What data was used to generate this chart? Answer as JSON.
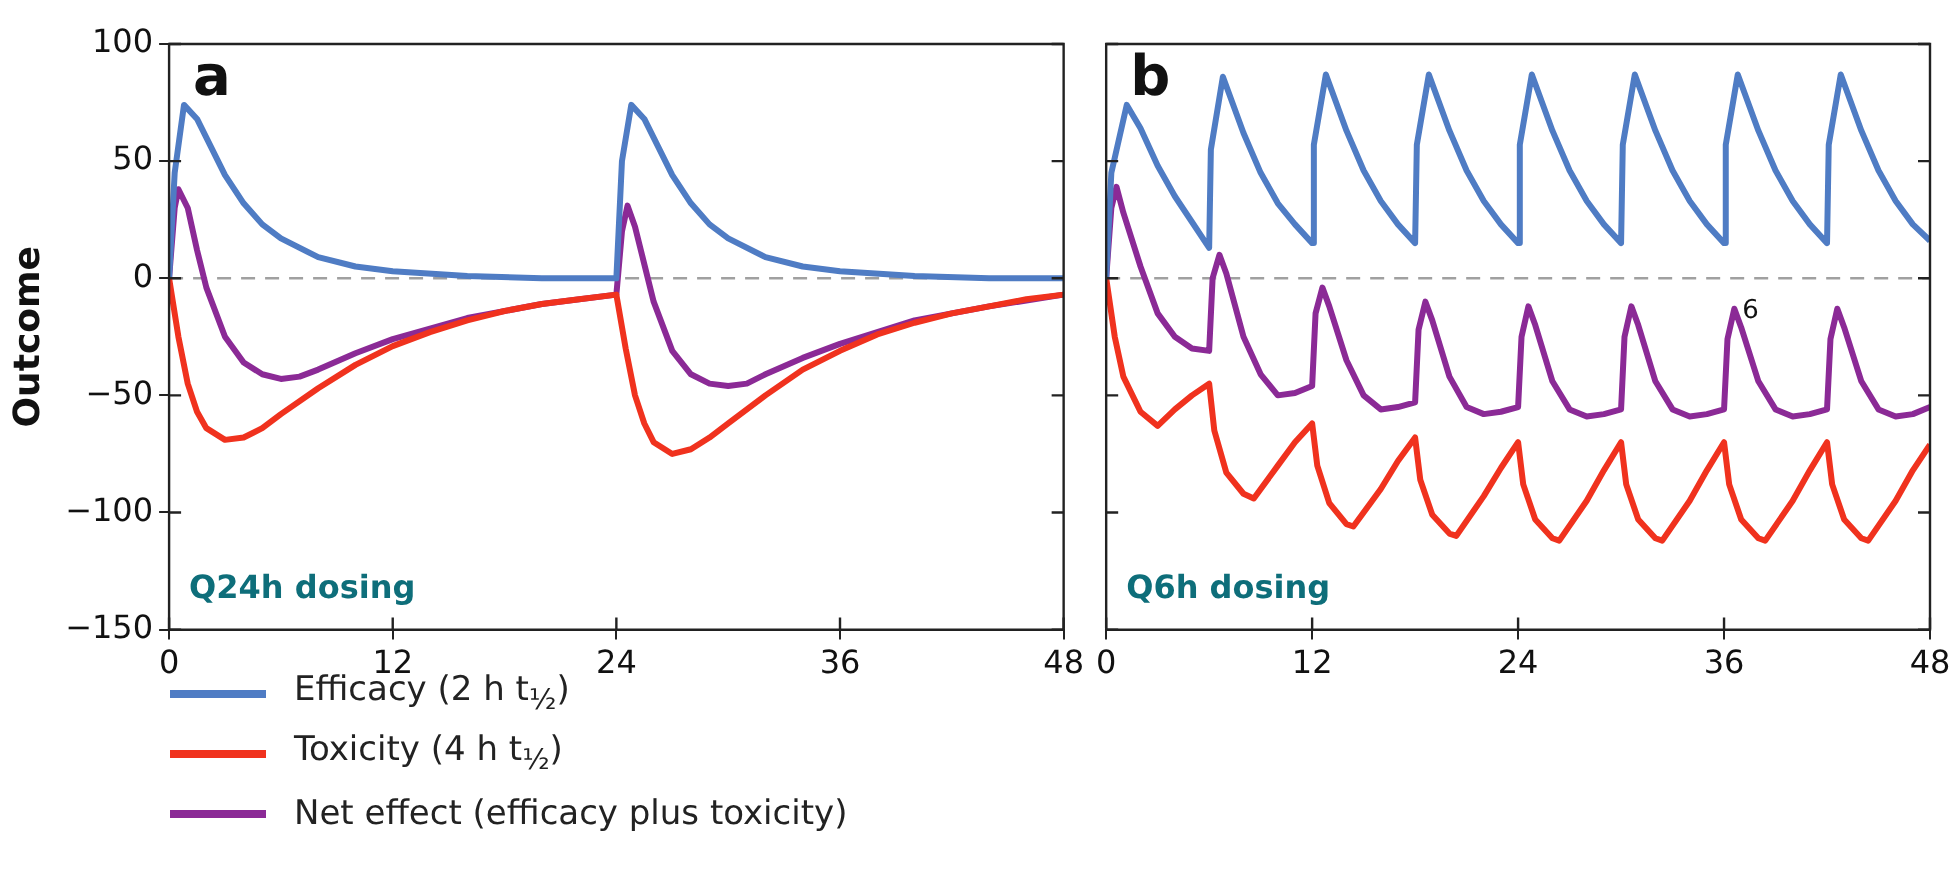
{
  "chart_data": [
    {
      "type": "line",
      "title": "a",
      "ylabel": "Outcome",
      "xlim": [
        0,
        48
      ],
      "xticks": [
        0,
        12,
        24,
        36,
        48
      ],
      "ylim": [
        -150,
        100
      ],
      "yticks": [
        100,
        50,
        0,
        {
          "value": -50,
          "label": "−50"
        },
        {
          "value": -100,
          "label": "−100"
        },
        {
          "value": -150,
          "label": "−150"
        }
      ],
      "grid": false,
      "legend": "bottom",
      "annotations": [
        "Q24h dosing"
      ],
      "ref_lines": [
        {
          "axis": "y",
          "value": 0,
          "color": "#a0a0a0",
          "line_style": "dashed"
        }
      ],
      "series": [
        {
          "name": "Efficacy (2 h t$_{½}$)",
          "color": "#4f7cc4",
          "x": [
            0,
            0.3,
            0.8,
            1.5,
            2,
            3,
            4,
            5,
            6,
            8,
            10,
            12,
            16,
            20,
            24,
            24.3,
            24.8,
            25.5,
            26,
            27,
            28,
            29,
            30,
            32,
            34,
            36,
            40,
            44,
            48
          ],
          "values": [
            0,
            45,
            74,
            68,
            60,
            44,
            32,
            23,
            17,
            9,
            5,
            3,
            1,
            0,
            0,
            50,
            74,
            68,
            60,
            44,
            32,
            23,
            17,
            9,
            5,
            3,
            1,
            0,
            0
          ]
        },
        {
          "name": "Toxicity (4 h t$_{½}$)",
          "color": "#f0321e",
          "x": [
            0,
            0.5,
            1,
            1.5,
            2,
            3,
            4,
            5,
            6,
            8,
            10,
            12,
            14,
            16,
            18,
            20,
            22,
            24,
            24.5,
            25,
            25.5,
            26,
            27,
            28,
            29,
            30,
            32,
            34,
            36,
            38,
            40,
            42,
            44,
            46,
            48
          ],
          "values": [
            0,
            -25,
            -45,
            -57,
            -64,
            -69,
            -68,
            -64,
            -58,
            -47,
            -37,
            -29,
            -23,
            -18,
            -14,
            -11,
            -9,
            -7,
            -30,
            -50,
            -62,
            -70,
            -75,
            -73,
            -68,
            -62,
            -50,
            -39,
            -31,
            -24,
            -19,
            -15,
            -12,
            -9,
            -7
          ]
        },
        {
          "name": "Net effect (efficacy plus toxicity)",
          "color": "#8b2a96",
          "x": [
            0,
            0.3,
            0.5,
            1,
            1.5,
            2,
            3,
            4,
            5,
            6,
            7,
            8,
            10,
            12,
            16,
            20,
            24,
            24.3,
            24.6,
            25,
            25.5,
            26,
            27,
            28,
            29,
            30,
            31,
            32,
            34,
            36,
            40,
            44,
            48
          ],
          "values": [
            0,
            30,
            38,
            30,
            12,
            -4,
            -25,
            -36,
            -41,
            -43,
            -42,
            -39,
            -32,
            -26,
            -17,
            -11,
            -7,
            20,
            31,
            22,
            6,
            -10,
            -31,
            -41,
            -45,
            -46,
            -45,
            -41,
            -34,
            -28,
            -18,
            -12,
            -7
          ]
        }
      ]
    },
    {
      "type": "line",
      "title": "b",
      "xlim": [
        0,
        48
      ],
      "xticks": [
        0,
        12,
        24,
        36,
        48
      ],
      "ylim": [
        -150,
        100
      ],
      "yticks": [
        100,
        50,
        0,
        -50,
        -100,
        -150
      ],
      "tick_labels": "x",
      "grid": false,
      "annotations": [
        "Q6h dosing",
        {
          "text": "6",
          "x": 36.6,
          "y": -14
        }
      ],
      "ref_lines": [
        {
          "axis": "y",
          "value": 0,
          "color": "#a0a0a0",
          "line_style": "dashed"
        }
      ],
      "series": [
        {
          "color": "#4f7cc4",
          "x": [
            0,
            0.3,
            1.2,
            2,
            3,
            4,
            5,
            6,
            6.1,
            6.8,
            8,
            9,
            10,
            11,
            12,
            12.1,
            12.8,
            14,
            15,
            16,
            17,
            18,
            18.1,
            18.8,
            20,
            21,
            22,
            23,
            24,
            24.1,
            24.8,
            26,
            27,
            28,
            29,
            30,
            30.1,
            30.8,
            32,
            33,
            34,
            35,
            36,
            36.1,
            36.8,
            38,
            39,
            40,
            41,
            42,
            42.1,
            42.8,
            44,
            45,
            46,
            47,
            48
          ],
          "values": [
            0,
            45,
            74,
            64,
            48,
            35,
            24,
            13,
            55,
            86,
            62,
            45,
            32,
            23,
            15,
            57,
            87,
            63,
            46,
            33,
            23,
            15,
            57,
            87,
            63,
            46,
            33,
            23,
            15,
            57,
            87,
            63,
            46,
            33,
            23,
            15,
            57,
            87,
            63,
            46,
            33,
            23,
            15,
            57,
            87,
            63,
            46,
            33,
            23,
            15,
            57,
            87,
            63,
            46,
            33,
            23,
            16
          ]
        },
        {
          "color": "#f0321e",
          "x": [
            0,
            0.5,
            1,
            2,
            3,
            4,
            5,
            6,
            6.3,
            7,
            8,
            8.6,
            10,
            11,
            12,
            12.3,
            13,
            14,
            14.4,
            16,
            17,
            18,
            18.3,
            19,
            20,
            20.4,
            22,
            23,
            24,
            24.3,
            25,
            26,
            26.4,
            28,
            29,
            30,
            30.3,
            31,
            32,
            32.4,
            34,
            35,
            36,
            36.3,
            37,
            38,
            38.4,
            40,
            41,
            42,
            42.3,
            43,
            44,
            44.4,
            46,
            47,
            48
          ],
          "values": [
            0,
            -25,
            -42,
            -57,
            -63,
            -56,
            -50,
            -45,
            -65,
            -83,
            -92,
            -94,
            -80,
            -70,
            -62,
            -80,
            -96,
            -105,
            -106,
            -90,
            -78,
            -68,
            -86,
            -101,
            -109,
            -110,
            -93,
            -81,
            -70,
            -88,
            -103,
            -111,
            -112,
            -95,
            -82,
            -70,
            -88,
            -103,
            -111,
            -112,
            -95,
            -82,
            -70,
            -88,
            -103,
            -111,
            -112,
            -95,
            -82,
            -70,
            -88,
            -103,
            -111,
            -112,
            -95,
            -82,
            -71
          ]
        },
        {
          "color": "#8b2a96",
          "x": [
            0,
            0.3,
            0.6,
            1,
            2,
            3,
            4,
            5,
            6,
            6.2,
            6.6,
            7,
            8,
            9,
            10,
            11,
            12,
            12.2,
            12.6,
            13,
            14,
            15,
            16,
            17,
            18,
            18.2,
            18.6,
            19,
            20,
            21,
            22,
            23,
            24,
            24.2,
            24.6,
            25,
            26,
            27,
            28,
            29,
            30,
            30.2,
            30.6,
            31,
            32,
            33,
            34,
            35,
            36,
            36.2,
            36.6,
            37,
            38,
            39,
            40,
            41,
            42,
            42.2,
            42.6,
            43,
            44,
            45,
            46,
            47,
            48
          ],
          "values": [
            0,
            30,
            39,
            28,
            5,
            -15,
            -25,
            -30,
            -31,
            0,
            10,
            2,
            -25,
            -41,
            -50,
            -49,
            -46,
            -15,
            -4,
            -12,
            -35,
            -50,
            -56,
            -55,
            -53,
            -22,
            -10,
            -18,
            -42,
            -55,
            -58,
            -57,
            -55,
            -25,
            -12,
            -20,
            -44,
            -56,
            -59,
            -58,
            -56,
            -25,
            -12,
            -20,
            -44,
            -56,
            -59,
            -58,
            -56,
            -26,
            -13,
            -21,
            -44,
            -56,
            -59,
            -58,
            -56,
            -26,
            -13,
            -21,
            -44,
            -56,
            -59,
            -58,
            -55
          ]
        }
      ]
    }
  ]
}
